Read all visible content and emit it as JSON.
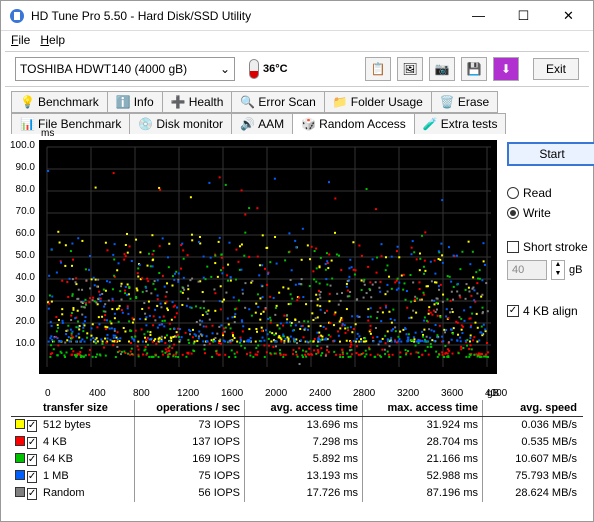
{
  "window": {
    "title": "HD Tune Pro 5.50 - Hard Disk/SSD Utility"
  },
  "menu": {
    "file": "File",
    "help": "Help"
  },
  "toolbar": {
    "drive": "TOSHIBA HDWT140 (4000 gB)",
    "temp": "36°C",
    "exit": "Exit"
  },
  "tabs": {
    "row1": [
      "Benchmark",
      "Info",
      "Health",
      "Error Scan",
      "Folder Usage",
      "Erase"
    ],
    "row2": [
      "File Benchmark",
      "Disk monitor",
      "AAM",
      "Random Access",
      "Extra tests"
    ],
    "active": "Random Access"
  },
  "chart": {
    "yunit": "ms",
    "ylim": [
      0,
      100
    ],
    "ytick_step": 10,
    "xlim": [
      0,
      4000
    ],
    "xtick_step": 400,
    "xunit": "gB",
    "bg": "#000000",
    "grid_color": "#333333",
    "series_colors": {
      "512b": "#ffff00",
      "4kb": "#ff0000",
      "64kb": "#00c000",
      "1mb": "#0060ff",
      "random": "#808080"
    },
    "scatter_note": "dense random scatter, heaviest 0-20ms band across full x range"
  },
  "side": {
    "start": "Start",
    "read": "Read",
    "write": "Write",
    "mode": "write",
    "shortstroke": "Short stroke",
    "shortstroke_on": false,
    "stroke_val": "40",
    "stroke_unit": "gB",
    "align": "4 KB align",
    "align_on": true
  },
  "results": {
    "headers": [
      "transfer size",
      "operations / sec",
      "avg. access time",
      "max. access time",
      "avg. speed"
    ],
    "rows": [
      {
        "color": "#ffff00",
        "checked": true,
        "size": "512 bytes",
        "ops": "73 IOPS",
        "avg": "13.696 ms",
        "max": "31.924 ms",
        "speed": "0.036 MB/s"
      },
      {
        "color": "#ff0000",
        "checked": true,
        "size": "4 KB",
        "ops": "137 IOPS",
        "avg": "7.298 ms",
        "max": "28.704 ms",
        "speed": "0.535 MB/s"
      },
      {
        "color": "#00c000",
        "checked": true,
        "size": "64 KB",
        "ops": "169 IOPS",
        "avg": "5.892 ms",
        "max": "21.166 ms",
        "speed": "10.607 MB/s"
      },
      {
        "color": "#0060ff",
        "checked": true,
        "size": "1 MB",
        "ops": "75 IOPS",
        "avg": "13.193 ms",
        "max": "52.988 ms",
        "speed": "75.793 MB/s"
      },
      {
        "color": "#808080",
        "checked": true,
        "size": "Random",
        "ops": "56 IOPS",
        "avg": "17.726 ms",
        "max": "87.196 ms",
        "speed": "28.624 MB/s"
      }
    ]
  }
}
